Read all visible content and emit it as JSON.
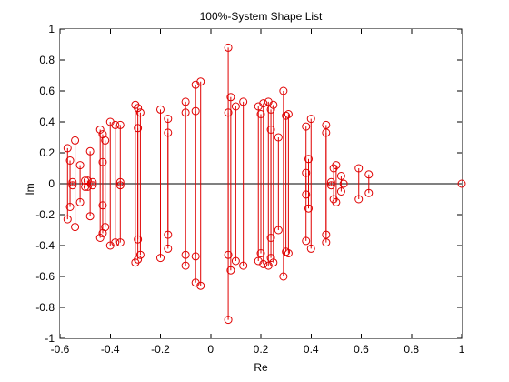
{
  "chart_data": {
    "type": "scatter",
    "title": "100%-System Shape List",
    "xlabel": "Re",
    "ylabel": "Im",
    "xlim": [
      -0.6,
      1
    ],
    "ylim": [
      -1,
      1
    ],
    "xticks": [
      -0.6,
      -0.4,
      -0.2,
      0,
      0.2,
      0.4,
      0.6,
      0.8,
      1
    ],
    "yticks": [
      -1,
      -0.8,
      -0.6,
      -0.4,
      -0.2,
      0,
      0.2,
      0.4,
      0.6,
      0.8,
      1
    ],
    "xtick_labels": [
      "-0.6",
      "-0.4",
      "-0.2",
      "0",
      "0.2",
      "0.4",
      "0.6",
      "0.8",
      "1"
    ],
    "ytick_labels": [
      "-1",
      "-0.8",
      "-0.6",
      "-0.4",
      "-0.2",
      "0",
      "0.2",
      "0.4",
      "0.6",
      "0.8",
      "1"
    ],
    "grid": true,
    "marker": "circle",
    "series_color": "#e00000",
    "stems": true,
    "points": [
      {
        "re": 1.0,
        "im": 0
      },
      {
        "re": 0.07,
        "im": 0.88
      },
      {
        "re": -0.04,
        "im": 0.66
      },
      {
        "re": -0.06,
        "im": 0.64
      },
      {
        "re": 0.29,
        "im": 0.6
      },
      {
        "re": 0.08,
        "im": 0.56
      },
      {
        "re": -0.3,
        "im": 0.51
      },
      {
        "re": -0.29,
        "im": 0.49
      },
      {
        "re": -0.2,
        "im": 0.48
      },
      {
        "re": -0.1,
        "im": 0.53
      },
      {
        "re": 0.13,
        "im": 0.53
      },
      {
        "re": 0.1,
        "im": 0.5
      },
      {
        "re": 0.19,
        "im": 0.5
      },
      {
        "re": 0.21,
        "im": 0.52
      },
      {
        "re": 0.23,
        "im": 0.53
      },
      {
        "re": 0.25,
        "im": 0.51
      },
      {
        "re": 0.2,
        "im": 0.45
      },
      {
        "re": 0.3,
        "im": 0.44
      },
      {
        "re": 0.31,
        "im": 0.45
      },
      {
        "re": 0.24,
        "im": 0.48
      },
      {
        "re": -0.28,
        "im": 0.46
      },
      {
        "re": -0.1,
        "im": 0.46
      },
      {
        "re": 0.07,
        "im": 0.46
      },
      {
        "re": -0.06,
        "im": 0.47
      },
      {
        "re": -0.17,
        "im": 0.42
      },
      {
        "re": 0.4,
        "im": 0.42
      },
      {
        "re": -0.4,
        "im": 0.4
      },
      {
        "re": -0.38,
        "im": 0.38
      },
      {
        "re": -0.36,
        "im": 0.38
      },
      {
        "re": 0.38,
        "im": 0.37
      },
      {
        "re": 0.46,
        "im": 0.38
      },
      {
        "re": -0.29,
        "im": 0.36
      },
      {
        "re": -0.44,
        "im": 0.35
      },
      {
        "re": -0.43,
        "im": 0.32
      },
      {
        "re": -0.17,
        "im": 0.33
      },
      {
        "re": -0.42,
        "im": 0.28
      },
      {
        "re": -0.54,
        "im": 0.28
      },
      {
        "re": 0.24,
        "im": 0.35
      },
      {
        "re": 0.27,
        "im": 0.3
      },
      {
        "re": 0.46,
        "im": 0.33
      },
      {
        "re": -0.57,
        "im": 0.23
      },
      {
        "re": -0.56,
        "im": 0.15
      },
      {
        "re": -0.48,
        "im": 0.21
      },
      {
        "re": -0.52,
        "im": 0.12
      },
      {
        "re": -0.43,
        "im": 0.14
      },
      {
        "re": 0.39,
        "im": 0.16
      },
      {
        "re": 0.5,
        "im": 0.12
      },
      {
        "re": 0.49,
        "im": 0.1
      },
      {
        "re": 0.59,
        "im": 0.1
      },
      {
        "re": 0.63,
        "im": 0.06
      },
      {
        "re": 0.52,
        "im": 0.05
      },
      {
        "re": -0.5,
        "im": 0.02
      },
      {
        "re": -0.49,
        "im": 0.02
      },
      {
        "re": -0.47,
        "im": 0.01
      },
      {
        "re": -0.36,
        "im": 0.01
      },
      {
        "re": -0.55,
        "im": 0.01
      },
      {
        "re": 0.38,
        "im": 0.07
      },
      {
        "re": 0.48,
        "im": 0.01
      },
      {
        "re": 0.53,
        "im": 0.0
      }
    ]
  }
}
